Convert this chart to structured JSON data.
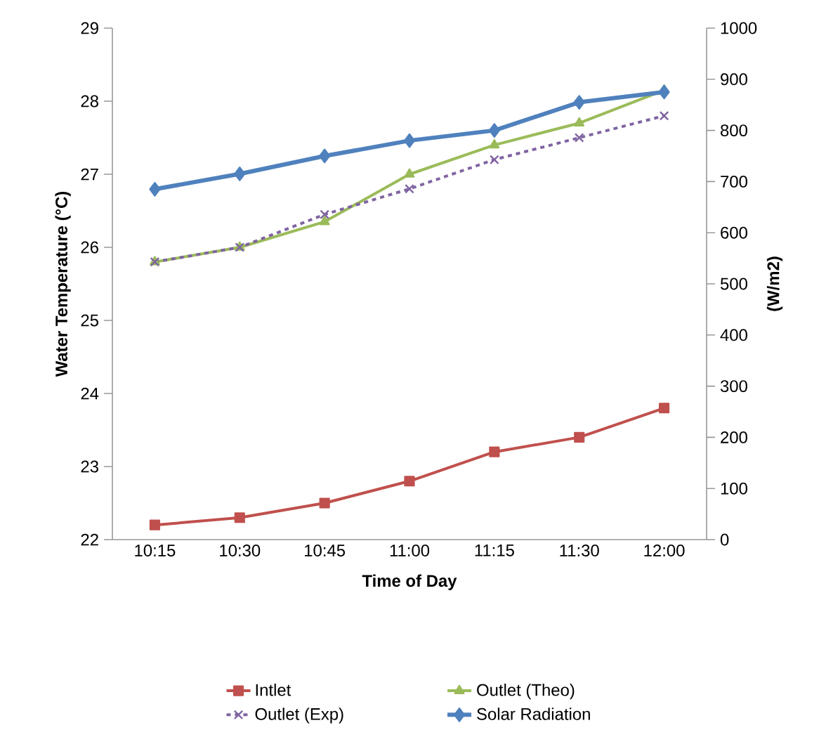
{
  "chart_data": {
    "type": "line",
    "xlabel": "Time of Day",
    "ylabel": "Water Temperature (°C)",
    "y2label": "(W/m2)",
    "categories": [
      "10:15",
      "10:30",
      "10:45",
      "11:00",
      "11:15",
      "11:30",
      "12:00"
    ],
    "series": [
      {
        "name": "Intlet",
        "color": "#c0504d",
        "marker": "square",
        "line_style": "solid",
        "values": [
          22.2,
          22.3,
          22.5,
          22.8,
          23.2,
          23.4,
          23.8
        ]
      },
      {
        "name": "Outlet (Theo)",
        "color": "#9bbb59",
        "marker": "triangle",
        "line_style": "solid",
        "values": [
          25.8,
          26.0,
          26.35,
          27.0,
          27.4,
          27.7,
          28.15
        ]
      },
      {
        "name": "Outlet (Exp)",
        "color": "#8064a2",
        "marker": "cross",
        "line_style": "dashed",
        "values": [
          25.8,
          26.0,
          26.45,
          26.8,
          27.2,
          27.5,
          27.8
        ]
      },
      {
        "name": "Solar Radiation",
        "color": "#4f81bd",
        "marker": "diamond",
        "line_style": "solid",
        "axis": "y2",
        "values": [
          685,
          715,
          750,
          780,
          800,
          855,
          875
        ]
      }
    ],
    "ylim": [
      22,
      29
    ],
    "yticks": [
      22,
      23,
      24,
      25,
      26,
      27,
      28,
      29
    ],
    "y2lim": [
      0,
      1000
    ],
    "y2ticks": [
      0,
      100,
      200,
      300,
      400,
      500,
      600,
      700,
      800,
      900,
      1000
    ],
    "grid": false,
    "legend": "bottom"
  }
}
